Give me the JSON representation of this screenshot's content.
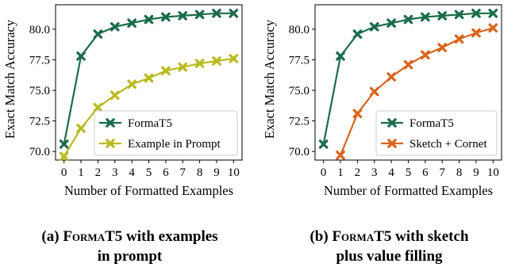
{
  "chart_data": [
    {
      "type": "line",
      "xlabel": "Number of Formatted Examples",
      "ylabel": "Exact Match Accuracy",
      "x": [
        0,
        1,
        2,
        3,
        4,
        5,
        6,
        7,
        8,
        9,
        10
      ],
      "xlim": [
        -0.5,
        10.5
      ],
      "ylim": [
        69.3,
        82.0
      ],
      "yticks": [
        70.0,
        72.5,
        75.0,
        77.5,
        80.0
      ],
      "ytick_labels": [
        "70.0",
        "72.5",
        "75.0",
        "77.5",
        "80.0"
      ],
      "legend_position": "lower-right",
      "grid": false,
      "series": [
        {
          "name": "FormaT5",
          "color": "#1a6b4a",
          "marker": "x",
          "values": [
            70.6,
            77.8,
            79.6,
            80.2,
            80.5,
            80.8,
            81.0,
            81.1,
            81.2,
            81.3,
            81.3
          ]
        },
        {
          "name": "Example in Prompt",
          "color": "#b8ba1c",
          "marker": "x",
          "values": [
            69.6,
            71.9,
            73.6,
            74.6,
            75.5,
            76.0,
            76.6,
            76.9,
            77.2,
            77.4,
            77.6
          ]
        }
      ],
      "caption": {
        "label": "(a)",
        "name": "FormaT5",
        "rest": " with examples",
        "line2": "in prompt"
      }
    },
    {
      "type": "line",
      "xlabel": "Number of Formatted Examples",
      "ylabel": "Exact Match Accuracy",
      "x": [
        0,
        1,
        2,
        3,
        4,
        5,
        6,
        7,
        8,
        9,
        10
      ],
      "xlim": [
        -0.5,
        10.5
      ],
      "ylim": [
        69.3,
        82.0
      ],
      "yticks": [
        70.0,
        72.5,
        75.0,
        77.5,
        80.0
      ],
      "ytick_labels": [
        "70.0",
        "72.5",
        "75.0",
        "77.5",
        "80.0"
      ],
      "legend_position": "lower-right",
      "grid": false,
      "series": [
        {
          "name": "FormaT5",
          "color": "#1a6b4a",
          "marker": "x",
          "values": [
            70.6,
            77.8,
            79.6,
            80.2,
            80.5,
            80.8,
            81.0,
            81.1,
            81.2,
            81.3,
            81.3
          ]
        },
        {
          "name": "Sketch + Cornet",
          "color": "#d8641a",
          "marker": "x",
          "values": [
            null,
            69.7,
            73.1,
            74.9,
            76.1,
            77.1,
            77.9,
            78.5,
            79.2,
            79.7,
            80.1
          ]
        }
      ],
      "caption": {
        "label": "(b)",
        "name": "FormaT5",
        "rest": " with sketch",
        "line2": "plus value filling"
      }
    }
  ]
}
